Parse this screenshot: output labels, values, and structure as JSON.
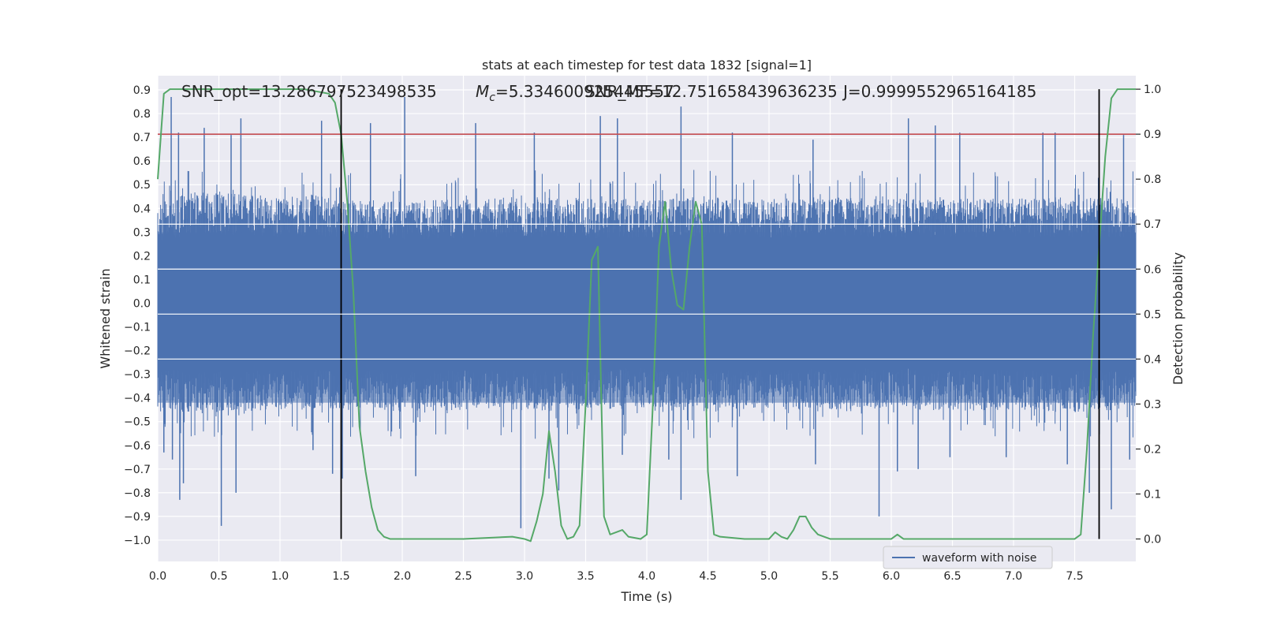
{
  "chart_data": {
    "type": "line",
    "title": "stats at each timestep for test data 1832 [signal=1]",
    "xlabel": "Time (s)",
    "ylabel_left": "Whitened strain",
    "ylabel_right": "Detection probability",
    "xlim": [
      0.0,
      8.0
    ],
    "ylim_left": [
      -1.09,
      0.96
    ],
    "ylim_right": [
      -0.05,
      1.03
    ],
    "x_ticks": [
      "0.0",
      "0.5",
      "1.0",
      "1.5",
      "2.0",
      "2.5",
      "3.0",
      "3.5",
      "4.0",
      "4.5",
      "5.0",
      "5.5",
      "6.0",
      "6.5",
      "7.0",
      "7.5"
    ],
    "x_tick_values": [
      0.0,
      0.5,
      1.0,
      1.5,
      2.0,
      2.5,
      3.0,
      3.5,
      4.0,
      4.5,
      5.0,
      5.5,
      6.0,
      6.5,
      7.0,
      7.5
    ],
    "y_ticks_left": [
      "0.9",
      "0.8",
      "0.7",
      "0.6",
      "0.5",
      "0.4",
      "0.3",
      "0.2",
      "0.1",
      "0.0",
      "−0.1",
      "−0.2",
      "−0.3",
      "−0.4",
      "−0.5",
      "−0.6",
      "−0.7",
      "−0.8",
      "−0.9",
      "−1.0"
    ],
    "y_tick_values_left": [
      0.9,
      0.8,
      0.7,
      0.6,
      0.5,
      0.4,
      0.3,
      0.2,
      0.1,
      0.0,
      -0.1,
      -0.2,
      -0.3,
      -0.4,
      -0.5,
      -0.6,
      -0.7,
      -0.8,
      -0.9,
      -1.0
    ],
    "y_ticks_right": [
      "1.0",
      "0.9",
      "0.8",
      "0.7",
      "0.6",
      "0.5",
      "0.4",
      "0.3",
      "0.2",
      "0.1",
      "0.0"
    ],
    "y_tick_values_right": [
      1.0,
      0.9,
      0.8,
      0.7,
      0.6,
      0.5,
      0.4,
      0.3,
      0.2,
      0.1,
      0.0
    ],
    "grid": true,
    "legend": {
      "entries": [
        "waveform with noise"
      ],
      "placement": "lower-right"
    },
    "annotations": [
      {
        "text": "SNR_opt=13.286797523498535",
        "x": 0.2
      },
      {
        "text_prefix": "M",
        "text_sub": "c",
        "text_suffix": "=5.334600925445557",
        "x": 2.6
      },
      {
        "text": "SNR_MF=12.751658439636235",
        "x": 3.5
      },
      {
        "text": "J=0.9999552965164185",
        "x": 5.6
      }
    ],
    "series": [
      {
        "name": "waveform with noise",
        "axis": "left",
        "kind": "noise-trace",
        "color": "#4c72b0",
        "envelope_upper": [
          [
            0.0,
            0.42
          ],
          [
            0.3,
            0.47
          ],
          [
            0.7,
            0.46
          ],
          [
            1.0,
            0.45
          ],
          [
            1.3,
            0.46
          ],
          [
            1.5,
            0.44
          ],
          [
            2.0,
            0.43
          ],
          [
            2.5,
            0.44
          ],
          [
            3.0,
            0.45
          ],
          [
            3.5,
            0.44
          ],
          [
            4.0,
            0.44
          ],
          [
            4.5,
            0.45
          ],
          [
            5.0,
            0.44
          ],
          [
            5.5,
            0.45
          ],
          [
            6.0,
            0.44
          ],
          [
            6.5,
            0.45
          ],
          [
            7.0,
            0.44
          ],
          [
            7.5,
            0.45
          ],
          [
            8.0,
            0.44
          ]
        ],
        "envelope_lower": [
          [
            0.0,
            -0.44
          ],
          [
            0.3,
            -0.47
          ],
          [
            0.7,
            -0.46
          ],
          [
            1.0,
            -0.45
          ],
          [
            1.5,
            -0.45
          ],
          [
            2.0,
            -0.46
          ],
          [
            2.5,
            -0.45
          ],
          [
            3.0,
            -0.46
          ],
          [
            3.5,
            -0.45
          ],
          [
            4.0,
            -0.44
          ],
          [
            4.5,
            -0.46
          ],
          [
            5.0,
            -0.45
          ],
          [
            5.5,
            -0.45
          ],
          [
            6.0,
            -0.44
          ],
          [
            6.5,
            -0.46
          ],
          [
            7.0,
            -0.45
          ],
          [
            7.5,
            -0.46
          ],
          [
            8.0,
            -0.45
          ]
        ],
        "peak_spikes": [
          [
            0.11,
            0.87
          ],
          [
            0.17,
            0.72
          ],
          [
            0.38,
            0.74
          ],
          [
            0.6,
            0.71
          ],
          [
            0.68,
            0.78
          ],
          [
            1.34,
            0.77
          ],
          [
            1.74,
            0.76
          ],
          [
            2.02,
            0.87
          ],
          [
            2.6,
            0.76
          ],
          [
            3.08,
            0.72
          ],
          [
            3.62,
            0.79
          ],
          [
            3.76,
            0.78
          ],
          [
            4.28,
            0.83
          ],
          [
            4.7,
            0.72
          ],
          [
            5.36,
            0.69
          ],
          [
            6.14,
            0.78
          ],
          [
            6.36,
            0.75
          ],
          [
            6.56,
            0.72
          ],
          [
            7.24,
            0.72
          ],
          [
            7.34,
            0.72
          ],
          [
            7.9,
            0.71
          ]
        ],
        "trough_spikes": [
          [
            0.06,
            -0.51
          ],
          [
            0.05,
            -0.63
          ],
          [
            0.12,
            -0.66
          ],
          [
            0.18,
            -0.83
          ],
          [
            0.21,
            -0.76
          ],
          [
            0.52,
            -0.94
          ],
          [
            0.64,
            -0.8
          ],
          [
            1.27,
            -0.62
          ],
          [
            1.43,
            -0.72
          ],
          [
            1.51,
            -0.74
          ],
          [
            2.11,
            -0.73
          ],
          [
            2.97,
            -0.95
          ],
          [
            3.2,
            -0.74
          ],
          [
            3.28,
            -0.79
          ],
          [
            3.8,
            -0.64
          ],
          [
            4.18,
            -0.66
          ],
          [
            4.28,
            -0.83
          ],
          [
            4.74,
            -0.73
          ],
          [
            5.38,
            -0.68
          ],
          [
            5.9,
            -0.9
          ],
          [
            6.05,
            -0.71
          ],
          [
            6.22,
            -0.7
          ],
          [
            6.48,
            -0.65
          ],
          [
            6.94,
            -0.65
          ],
          [
            7.44,
            -0.68
          ],
          [
            7.62,
            -0.8
          ],
          [
            7.8,
            -0.87
          ],
          [
            7.95,
            -0.66
          ]
        ]
      },
      {
        "name": "",
        "axis": "right",
        "kind": "line",
        "color": "#55a868",
        "points": [
          [
            0.0,
            0.8
          ],
          [
            0.05,
            0.99
          ],
          [
            0.1,
            1.0
          ],
          [
            0.3,
            1.0
          ],
          [
            0.7,
            1.0
          ],
          [
            1.0,
            1.0
          ],
          [
            1.2,
            1.0
          ],
          [
            1.4,
            0.99
          ],
          [
            1.45,
            0.97
          ],
          [
            1.5,
            0.9
          ],
          [
            1.55,
            0.75
          ],
          [
            1.6,
            0.55
          ],
          [
            1.65,
            0.25
          ],
          [
            1.7,
            0.15
          ],
          [
            1.75,
            0.07
          ],
          [
            1.8,
            0.02
          ],
          [
            1.85,
            0.005
          ],
          [
            1.9,
            0.0
          ],
          [
            2.0,
            0.0
          ],
          [
            2.5,
            0.0
          ],
          [
            2.9,
            0.005
          ],
          [
            3.0,
            0.0
          ],
          [
            3.05,
            -0.005
          ],
          [
            3.1,
            0.04
          ],
          [
            3.15,
            0.1
          ],
          [
            3.2,
            0.24
          ],
          [
            3.25,
            0.15
          ],
          [
            3.3,
            0.03
          ],
          [
            3.35,
            0.0
          ],
          [
            3.4,
            0.005
          ],
          [
            3.45,
            0.03
          ],
          [
            3.5,
            0.3
          ],
          [
            3.55,
            0.62
          ],
          [
            3.6,
            0.65
          ],
          [
            3.65,
            0.05
          ],
          [
            3.7,
            0.01
          ],
          [
            3.8,
            0.02
          ],
          [
            3.85,
            0.005
          ],
          [
            3.95,
            0.0
          ],
          [
            4.0,
            0.01
          ],
          [
            4.05,
            0.3
          ],
          [
            4.1,
            0.65
          ],
          [
            4.15,
            0.75
          ],
          [
            4.2,
            0.6
          ],
          [
            4.25,
            0.52
          ],
          [
            4.3,
            0.51
          ],
          [
            4.35,
            0.65
          ],
          [
            4.4,
            0.75
          ],
          [
            4.45,
            0.7
          ],
          [
            4.5,
            0.15
          ],
          [
            4.55,
            0.01
          ],
          [
            4.6,
            0.005
          ],
          [
            4.8,
            0.0
          ],
          [
            5.0,
            0.0
          ],
          [
            5.05,
            0.015
          ],
          [
            5.1,
            0.005
          ],
          [
            5.15,
            0.0
          ],
          [
            5.2,
            0.02
          ],
          [
            5.25,
            0.05
          ],
          [
            5.3,
            0.05
          ],
          [
            5.35,
            0.025
          ],
          [
            5.4,
            0.01
          ],
          [
            5.5,
            0.0
          ],
          [
            6.0,
            0.0
          ],
          [
            6.05,
            0.01
          ],
          [
            6.1,
            0.0
          ],
          [
            6.5,
            0.0
          ],
          [
            7.0,
            0.0
          ],
          [
            7.5,
            0.0
          ],
          [
            7.55,
            0.01
          ],
          [
            7.6,
            0.2
          ],
          [
            7.65,
            0.45
          ],
          [
            7.7,
            0.65
          ],
          [
            7.75,
            0.85
          ],
          [
            7.8,
            0.98
          ],
          [
            7.85,
            1.0
          ],
          [
            8.0,
            1.0
          ]
        ]
      }
    ],
    "threshold_line": {
      "axis": "right",
      "value": 0.9,
      "color": "#c44e52"
    },
    "vertical_markers": [
      {
        "x": 1.5,
        "color": "#000000"
      },
      {
        "x": 7.7,
        "color": "#000000"
      }
    ]
  }
}
